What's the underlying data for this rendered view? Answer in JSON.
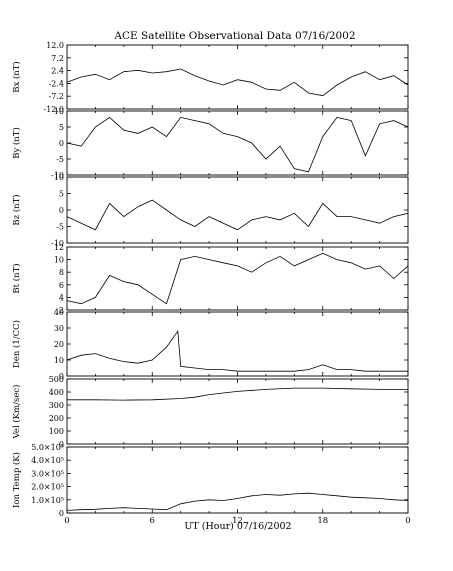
{
  "chart_data": {
    "type": "line",
    "title": "ACE Satellite Observational Data   07/16/2002",
    "xlabel": "UT (Hour)   07/16/2002",
    "xlim": [
      0,
      24
    ],
    "xtick_labels": [
      "0",
      "6",
      "12",
      "18",
      "0"
    ],
    "panels": [
      {
        "ylabel": "Bx (nT)",
        "ylim": [
          -12,
          12
        ],
        "ytick_labels": [
          "12.0",
          "7.2",
          "2.4",
          "-2.4",
          "-7.2",
          "-12.0"
        ],
        "x": [
          0,
          1,
          2,
          3,
          4,
          5,
          6,
          7,
          8,
          9,
          10,
          11,
          12,
          13,
          14,
          15,
          16,
          17,
          18,
          19,
          20,
          21,
          22,
          23,
          24
        ],
        "values": [
          -2.0,
          0.0,
          1.0,
          -1.0,
          2.0,
          2.5,
          1.5,
          2.0,
          3.0,
          0.5,
          -1.5,
          -3.0,
          -1.0,
          -2.0,
          -4.5,
          -5.0,
          -2.0,
          -6.0,
          -7.0,
          -3.0,
          0.0,
          2.0,
          -1.0,
          0.5,
          -3.0
        ]
      },
      {
        "ylabel": "By (nT)",
        "ylim": [
          -10,
          10
        ],
        "ytick_labels": [
          "10",
          "5",
          "0",
          "-5",
          "-10"
        ],
        "x": [
          0,
          1,
          2,
          3,
          4,
          5,
          6,
          7,
          8,
          9,
          10,
          11,
          12,
          13,
          14,
          15,
          16,
          17,
          18,
          19,
          20,
          21,
          22,
          23,
          24
        ],
        "values": [
          0,
          -1,
          5,
          8,
          4,
          3,
          5,
          2,
          8,
          7,
          6,
          3,
          2,
          0,
          -5,
          -1,
          -8,
          -9,
          2,
          8,
          7,
          -4,
          6,
          7,
          5
        ]
      },
      {
        "ylabel": "Bz (nT)",
        "ylim": [
          -10,
          10
        ],
        "ytick_labels": [
          "10",
          "5",
          "0",
          "-5",
          "-10"
        ],
        "x": [
          0,
          1,
          2,
          3,
          4,
          5,
          6,
          7,
          8,
          9,
          10,
          11,
          12,
          13,
          14,
          15,
          16,
          17,
          18,
          19,
          20,
          21,
          22,
          23,
          24
        ],
        "values": [
          -2,
          -4,
          -6,
          2,
          -2,
          1,
          3,
          0,
          -3,
          -5,
          -2,
          -4,
          -6,
          -3,
          -2,
          -3,
          -1,
          -5,
          2,
          -2,
          -2,
          -3,
          -4,
          -2,
          -1
        ]
      },
      {
        "ylabel": "Bt (nT)",
        "ylim": [
          2,
          12
        ],
        "ytick_labels": [
          "12",
          "10",
          "8",
          "6",
          "4",
          "2"
        ],
        "x": [
          0,
          1,
          2,
          3,
          4,
          5,
          6,
          7,
          8,
          9,
          10,
          11,
          12,
          13,
          14,
          15,
          16,
          17,
          18,
          19,
          20,
          21,
          22,
          23,
          24
        ],
        "values": [
          3.5,
          3.0,
          4.0,
          7.5,
          6.5,
          6.0,
          4.5,
          3.0,
          10.0,
          10.5,
          10.0,
          9.5,
          9.0,
          8.0,
          9.5,
          10.5,
          9.0,
          10.0,
          11.0,
          10.0,
          9.5,
          8.5,
          9.0,
          7.0,
          9.0
        ]
      },
      {
        "ylabel": "Den (1/CC)",
        "ylim": [
          0,
          40
        ],
        "ytick_labels": [
          "40",
          "30",
          "20",
          "10",
          "0"
        ],
        "x": [
          0,
          1,
          2,
          3,
          4,
          5,
          6,
          7,
          7.8,
          8,
          9,
          10,
          11,
          12,
          13,
          14,
          15,
          16,
          17,
          18,
          19,
          20,
          21,
          22,
          23,
          24
        ],
        "values": [
          10,
          13,
          14,
          11,
          9,
          8,
          10,
          18,
          28,
          6,
          5,
          4,
          4,
          3,
          3,
          3,
          3,
          3,
          4,
          7,
          4,
          4,
          3,
          3,
          3,
          3
        ]
      },
      {
        "ylabel": "Vel (Km/sec)",
        "ylim": [
          0,
          500
        ],
        "ytick_labels": [
          "500",
          "400",
          "300",
          "200",
          "100",
          "0"
        ],
        "x": [
          0,
          2,
          4,
          6,
          8,
          9,
          10,
          12,
          14,
          16,
          18,
          20,
          22,
          24
        ],
        "values": [
          340,
          340,
          338,
          340,
          350,
          360,
          380,
          405,
          420,
          430,
          430,
          425,
          420,
          420
        ]
      },
      {
        "ylabel": "Ion Temp (K)",
        "ylim": [
          0,
          500000
        ],
        "ytick_labels": [
          "5.0×10⁵",
          "4.0×10⁵",
          "3.0×10⁵",
          "2.0×10⁵",
          "1.0×10⁵",
          "0"
        ],
        "x": [
          0,
          1,
          2,
          3,
          4,
          5,
          6,
          7,
          8,
          9,
          10,
          11,
          12,
          13,
          14,
          15,
          16,
          17,
          18,
          19,
          20,
          21,
          22,
          23,
          24
        ],
        "values": [
          20000,
          25000,
          28000,
          35000,
          40000,
          35000,
          30000,
          25000,
          70000,
          90000,
          100000,
          95000,
          110000,
          130000,
          140000,
          135000,
          145000,
          150000,
          140000,
          130000,
          120000,
          115000,
          110000,
          100000,
          95000
        ]
      }
    ]
  }
}
